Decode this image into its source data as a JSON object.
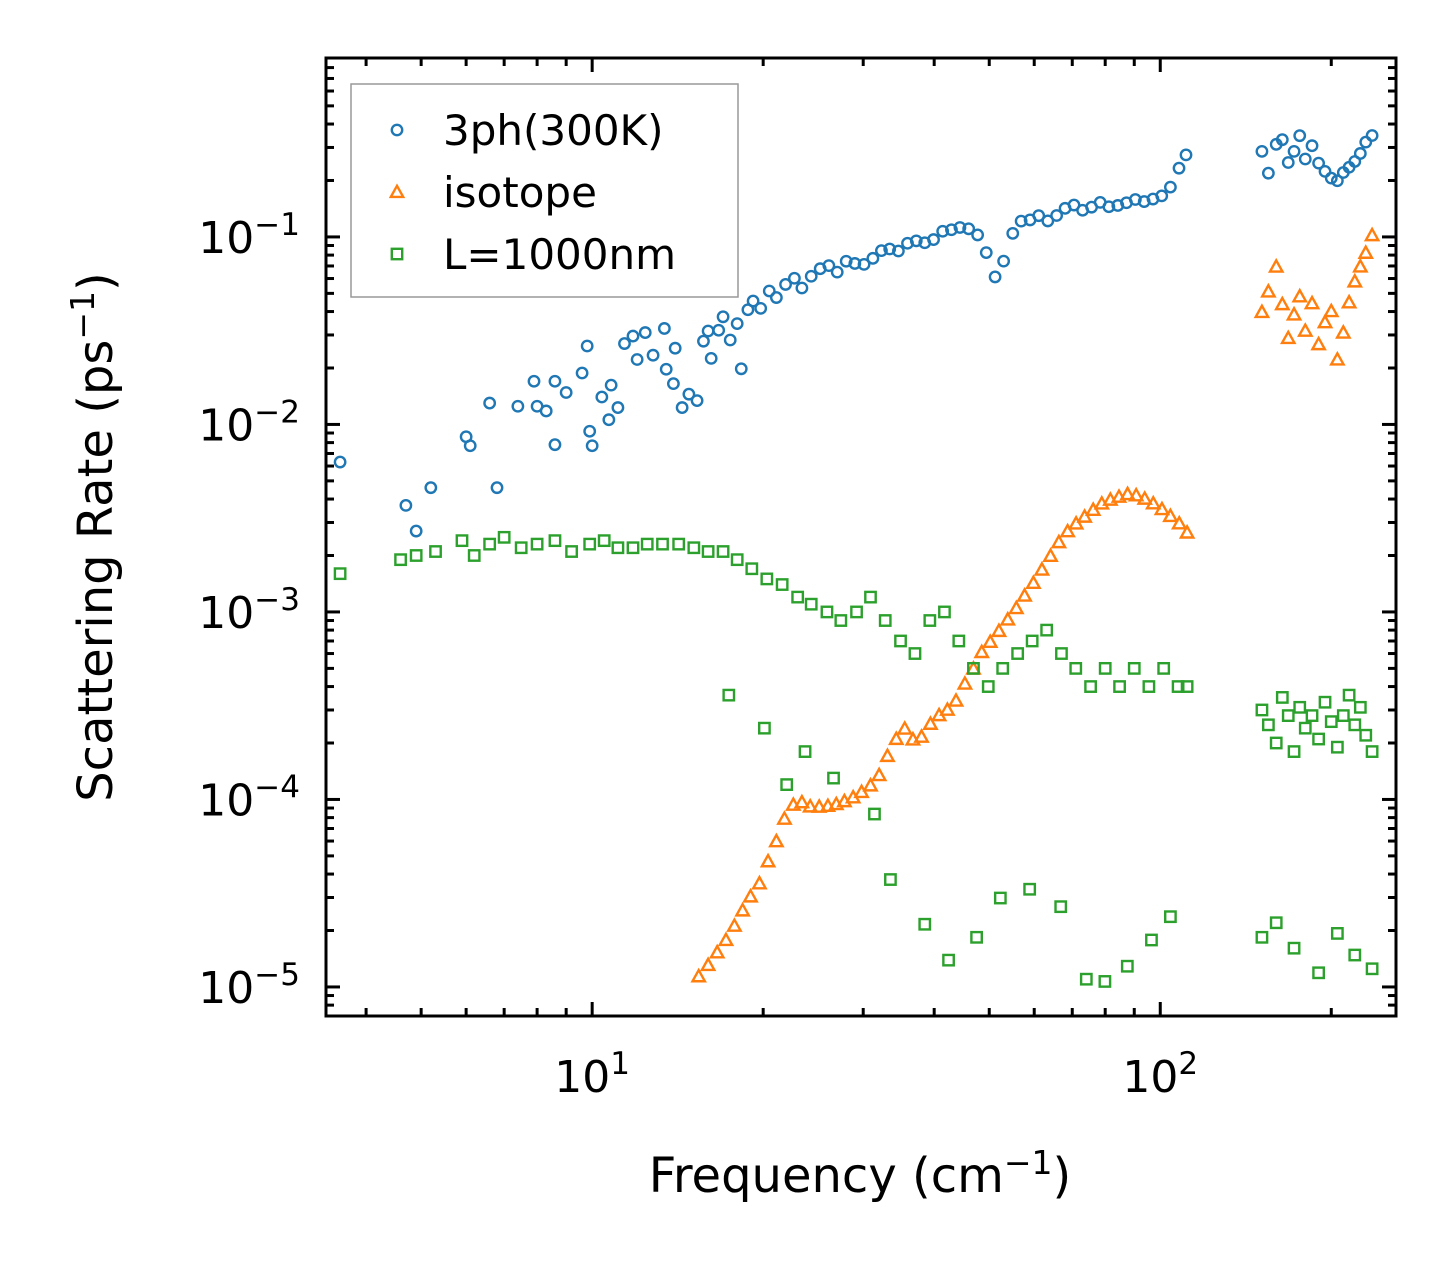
{
  "chart_data": {
    "type": "scatter",
    "title": "",
    "xlabel": "Frequency (cm",
    "xlabel_sup": "−1",
    "xlabel_tail": ")",
    "ylabel": "Scattering Rate (ps",
    "ylabel_sup": "−1",
    "ylabel_tail": ")",
    "xscale": "log",
    "yscale": "log",
    "xlim": [
      3.4,
      260
    ],
    "ylim": [
      7e-06,
      0.9
    ],
    "x_ticks": [
      {
        "value": 10,
        "base": "10",
        "exp": "1"
      },
      {
        "value": 100,
        "base": "10",
        "exp": "2"
      }
    ],
    "y_ticks": [
      {
        "value": 0.1,
        "base": "10",
        "exp": "−1"
      },
      {
        "value": 0.01,
        "base": "10",
        "exp": "−2"
      },
      {
        "value": 0.001,
        "base": "10",
        "exp": "−3"
      },
      {
        "value": 0.0001,
        "base": "10",
        "exp": "−4"
      },
      {
        "value": 1e-05,
        "base": "10",
        "exp": "−5"
      }
    ],
    "legend_position": "top-left",
    "series": [
      {
        "name": "3ph(300K)",
        "color": "#1f77b4",
        "marker": "circle",
        "points": [
          [
            3.6,
            0.0063
          ],
          [
            4.7,
            0.0037
          ],
          [
            4.9,
            0.0027
          ],
          [
            5.2,
            0.0046
          ],
          [
            6.0,
            0.0086
          ],
          [
            6.1,
            0.0077
          ],
          [
            6.6,
            0.013
          ],
          [
            6.8,
            0.0046
          ],
          [
            7.4,
            0.0125
          ],
          [
            7.9,
            0.017
          ],
          [
            8.0,
            0.0125
          ],
          [
            8.3,
            0.0118
          ],
          [
            8.6,
            0.017
          ],
          [
            8.6,
            0.0078
          ],
          [
            9.0,
            0.0148
          ],
          [
            9.6,
            0.0188
          ],
          [
            9.8,
            0.0262
          ],
          [
            9.9,
            0.0092
          ],
          [
            10.0,
            0.0077
          ],
          [
            10.4,
            0.014
          ],
          [
            10.7,
            0.0106
          ],
          [
            10.8,
            0.0162
          ],
          [
            11.1,
            0.0123
          ],
          [
            11.4,
            0.027
          ],
          [
            11.8,
            0.0296
          ],
          [
            12.0,
            0.0222
          ],
          [
            12.4,
            0.0309
          ],
          [
            12.8,
            0.0234
          ],
          [
            13.4,
            0.0325
          ],
          [
            13.5,
            0.0197
          ],
          [
            13.9,
            0.0165
          ],
          [
            14.0,
            0.0255
          ],
          [
            14.4,
            0.0123
          ],
          [
            14.8,
            0.0145
          ],
          [
            15.3,
            0.0134
          ],
          [
            15.7,
            0.0278
          ],
          [
            16.0,
            0.0315
          ],
          [
            16.2,
            0.0225
          ],
          [
            16.7,
            0.0318
          ],
          [
            17.0,
            0.0375
          ],
          [
            17.5,
            0.0282
          ],
          [
            18.0,
            0.0345
          ],
          [
            18.3,
            0.0198
          ],
          [
            18.8,
            0.0409
          ],
          [
            19.2,
            0.0455
          ],
          [
            19.8,
            0.0416
          ],
          [
            20.5,
            0.0515
          ],
          [
            21.1,
            0.0475
          ],
          [
            21.9,
            0.0558
          ],
          [
            22.7,
            0.0602
          ],
          [
            23.4,
            0.0534
          ],
          [
            24.3,
            0.0617
          ],
          [
            25.2,
            0.0677
          ],
          [
            26.1,
            0.0703
          ],
          [
            27.0,
            0.0649
          ],
          [
            28.0,
            0.0742
          ],
          [
            29.0,
            0.0722
          ],
          [
            30.1,
            0.0714
          ],
          [
            31.2,
            0.0769
          ],
          [
            32.3,
            0.0845
          ],
          [
            33.4,
            0.0862
          ],
          [
            34.6,
            0.0841
          ],
          [
            35.9,
            0.0925
          ],
          [
            37.2,
            0.0953
          ],
          [
            38.5,
            0.0931
          ],
          [
            39.9,
            0.0968
          ],
          [
            41.4,
            0.1072
          ],
          [
            42.9,
            0.1092
          ],
          [
            44.4,
            0.1123
          ],
          [
            46.0,
            0.1105
          ],
          [
            47.7,
            0.1025
          ],
          [
            49.4,
            0.0825
          ],
          [
            51.2,
            0.0612
          ],
          [
            53.0,
            0.0743
          ],
          [
            55.0,
            0.1045
          ],
          [
            56.9,
            0.1214
          ],
          [
            59.0,
            0.1232
          ],
          [
            61.1,
            0.1298
          ],
          [
            63.4,
            0.1217
          ],
          [
            65.7,
            0.1301
          ],
          [
            68.0,
            0.1421
          ],
          [
            70.5,
            0.1479
          ],
          [
            73.0,
            0.1388
          ],
          [
            75.7,
            0.1441
          ],
          [
            78.4,
            0.1528
          ],
          [
            81.2,
            0.1449
          ],
          [
            84.2,
            0.1472
          ],
          [
            87.2,
            0.1521
          ],
          [
            90.4,
            0.1583
          ],
          [
            93.7,
            0.1544
          ],
          [
            97.1,
            0.1592
          ],
          [
            100.6,
            0.1655
          ],
          [
            104.2,
            0.1844
          ],
          [
            107.9,
            0.2326
          ],
          [
            111.0,
            0.2738
          ],
          [
            151.0,
            0.286
          ],
          [
            155.0,
            0.2188
          ],
          [
            160.0,
            0.3118
          ],
          [
            164.0,
            0.3301
          ],
          [
            168.0,
            0.2494
          ],
          [
            172.0,
            0.2859
          ],
          [
            176.0,
            0.3467
          ],
          [
            180.0,
            0.2604
          ],
          [
            185.0,
            0.3066
          ],
          [
            190.0,
            0.2474
          ],
          [
            195.0,
            0.2236
          ],
          [
            200.0,
            0.2058
          ],
          [
            205.0,
            0.1993
          ],
          [
            210.0,
            0.2205
          ],
          [
            215.0,
            0.2352
          ],
          [
            220.0,
            0.2526
          ],
          [
            225.0,
            0.2787
          ],
          [
            230.0,
            0.3202
          ],
          [
            236.0,
            0.3474
          ]
        ]
      },
      {
        "name": "isotope",
        "color": "#ff7f0e",
        "marker": "triangle",
        "points": [
          [
            15.4,
            1.14e-05
          ],
          [
            16.0,
            1.31e-05
          ],
          [
            16.6,
            1.53e-05
          ],
          [
            17.2,
            1.78e-05
          ],
          [
            17.8,
            2.12e-05
          ],
          [
            18.4,
            2.56e-05
          ],
          [
            19.0,
            3.04e-05
          ],
          [
            19.7,
            3.57e-05
          ],
          [
            20.4,
            4.68e-05
          ],
          [
            21.1,
            5.99e-05
          ],
          [
            21.8,
            7.89e-05
          ],
          [
            22.6,
            9.37e-05
          ],
          [
            23.4,
            9.66e-05
          ],
          [
            24.2,
            9.18e-05
          ],
          [
            25.1,
            9.15e-05
          ],
          [
            26.0,
            9.24e-05
          ],
          [
            26.9,
            9.44e-05
          ],
          [
            27.8,
            9.79e-05
          ],
          [
            28.8,
            0.0001026
          ],
          [
            29.8,
            0.0001096
          ],
          [
            30.9,
            0.0001188
          ],
          [
            32.0,
            0.0001349
          ],
          [
            33.1,
            0.0001707
          ],
          [
            34.3,
            0.0002103
          ],
          [
            35.5,
            0.0002386
          ],
          [
            36.7,
            0.0002089
          ],
          [
            38.0,
            0.0002161
          ],
          [
            39.4,
            0.0002532
          ],
          [
            40.8,
            0.0002815
          ],
          [
            42.2,
            0.0003009
          ],
          [
            43.7,
            0.0003366
          ],
          [
            45.3,
            0.0004146
          ],
          [
            46.9,
            0.0004991
          ],
          [
            48.5,
            0.0006112
          ],
          [
            50.2,
            0.0006924
          ],
          [
            52.0,
            0.0007922
          ],
          [
            53.9,
            0.0009121
          ],
          [
            55.8,
            0.0010482
          ],
          [
            57.7,
            0.0012224
          ],
          [
            59.8,
            0.0014287
          ],
          [
            61.9,
            0.0016823
          ],
          [
            64.1,
            0.0019915
          ],
          [
            66.3,
            0.002356
          ],
          [
            68.7,
            0.0026937
          ],
          [
            71.1,
            0.0029651
          ],
          [
            73.6,
            0.0032219
          ],
          [
            76.2,
            0.0035038
          ],
          [
            78.9,
            0.0037863
          ],
          [
            81.7,
            0.0039702
          ],
          [
            84.6,
            0.0041133
          ],
          [
            87.6,
            0.0042516
          ],
          [
            90.7,
            0.0041883
          ],
          [
            93.9,
            0.0040184
          ],
          [
            97.2,
            0.0037936
          ],
          [
            100.7,
            0.0035339
          ],
          [
            104.2,
            0.0032511
          ],
          [
            108.0,
            0.0029662
          ],
          [
            111.5,
            0.002651
          ],
          [
            151.0,
            0.0398
          ],
          [
            155.0,
            0.0512
          ],
          [
            160.0,
            0.0695
          ],
          [
            164.0,
            0.0438
          ],
          [
            168.0,
            0.0289
          ],
          [
            172.0,
            0.0386
          ],
          [
            176.0,
            0.0482
          ],
          [
            180.0,
            0.0316
          ],
          [
            185.0,
            0.0443
          ],
          [
            190.0,
            0.0268
          ],
          [
            195.0,
            0.0351
          ],
          [
            200.0,
            0.0402
          ],
          [
            205.0,
            0.0222
          ],
          [
            210.0,
            0.0309
          ],
          [
            215.0,
            0.0448
          ],
          [
            220.0,
            0.0579
          ],
          [
            225.0,
            0.0696
          ],
          [
            230.0,
            0.0823
          ],
          [
            236.0,
            0.1022
          ]
        ]
      },
      {
        "name": "L=1000nm",
        "color": "#2ca02c",
        "marker": "square",
        "points": [
          [
            3.6,
            0.0016
          ],
          [
            4.6,
            0.0019
          ],
          [
            4.9,
            0.002
          ],
          [
            5.3,
            0.0021
          ],
          [
            5.9,
            0.0024
          ],
          [
            6.2,
            0.002
          ],
          [
            6.6,
            0.0023
          ],
          [
            7.0,
            0.0025
          ],
          [
            7.5,
            0.0022
          ],
          [
            8.0,
            0.0023
          ],
          [
            8.6,
            0.0024
          ],
          [
            9.2,
            0.0021
          ],
          [
            9.9,
            0.0023
          ],
          [
            10.5,
            0.0024
          ],
          [
            11.1,
            0.0022
          ],
          [
            11.8,
            0.0022
          ],
          [
            12.5,
            0.0023
          ],
          [
            13.3,
            0.0023
          ],
          [
            14.2,
            0.0023
          ],
          [
            15.1,
            0.0022
          ],
          [
            16.0,
            0.0021
          ],
          [
            17.0,
            0.0021
          ],
          [
            18.0,
            0.0019
          ],
          [
            19.1,
            0.0017
          ],
          [
            20.3,
            0.0015
          ],
          [
            21.6,
            0.0014
          ],
          [
            23.0,
            0.0012
          ],
          [
            24.3,
            0.0011
          ],
          [
            25.9,
            0.001
          ],
          [
            27.4,
            0.0009
          ],
          [
            29.2,
            0.001
          ],
          [
            30.9,
            0.0012
          ],
          [
            32.8,
            0.0009
          ],
          [
            34.9,
            0.0007
          ],
          [
            37.0,
            0.0006
          ],
          [
            39.3,
            0.0009
          ],
          [
            41.7,
            0.001
          ],
          [
            44.2,
            0.0007
          ],
          [
            46.9,
            0.0005
          ],
          [
            49.8,
            0.0004
          ],
          [
            52.8,
            0.0005
          ],
          [
            56.1,
            0.0006
          ],
          [
            59.5,
            0.0007
          ],
          [
            63.1,
            0.0008
          ],
          [
            67.0,
            0.0006
          ],
          [
            71.0,
            0.0005
          ],
          [
            75.4,
            0.0004
          ],
          [
            80.0,
            0.0005
          ],
          [
            84.8,
            0.0004
          ],
          [
            90.0,
            0.0005
          ],
          [
            95.5,
            0.0004
          ],
          [
            101.4,
            0.0005
          ],
          [
            107.5,
            0.0004
          ],
          [
            111.5,
            0.0004
          ],
          [
            151.0,
            0.0003
          ],
          [
            155.0,
            0.00025
          ],
          [
            160.0,
            0.0002
          ],
          [
            164.0,
            0.00035
          ],
          [
            168.0,
            0.00028
          ],
          [
            172.0,
            0.00018
          ],
          [
            176.0,
            0.00031
          ],
          [
            180.0,
            0.00024
          ],
          [
            185.0,
            0.00028
          ],
          [
            190.0,
            0.00021
          ],
          [
            195.0,
            0.00033
          ],
          [
            200.0,
            0.00026
          ],
          [
            205.0,
            0.00019
          ],
          [
            210.0,
            0.00028
          ],
          [
            215.0,
            0.00036
          ],
          [
            220.0,
            0.00025
          ],
          [
            225.0,
            0.00031
          ],
          [
            230.0,
            0.00022
          ],
          [
            236.0,
            0.00018
          ],
          [
            17.4,
            0.00036
          ],
          [
            20.1,
            0.00024
          ],
          [
            22.0,
            0.00012
          ],
          [
            23.7,
            0.00018
          ],
          [
            26.6,
            0.00013
          ],
          [
            31.4,
            8.36e-05
          ],
          [
            33.5,
            3.74e-05
          ],
          [
            38.5,
            2.16e-05
          ],
          [
            42.4,
            1.39e-05
          ],
          [
            47.5,
            1.84e-05
          ],
          [
            52.3,
            2.98e-05
          ],
          [
            58.9,
            3.32e-05
          ],
          [
            66.8,
            2.68e-05
          ],
          [
            74.1,
            1.1e-05
          ],
          [
            79.9,
            1.07e-05
          ],
          [
            87.5,
            1.29e-05
          ],
          [
            96.5,
            1.78e-05
          ],
          [
            104.2,
            2.37e-05
          ],
          [
            151.0,
            1.84e-05
          ],
          [
            160.0,
            2.2e-05
          ],
          [
            172.0,
            1.61e-05
          ],
          [
            190.0,
            1.19e-05
          ],
          [
            205.0,
            1.93e-05
          ],
          [
            220.0,
            1.48e-05
          ],
          [
            236.0,
            1.25e-05
          ]
        ]
      }
    ]
  }
}
